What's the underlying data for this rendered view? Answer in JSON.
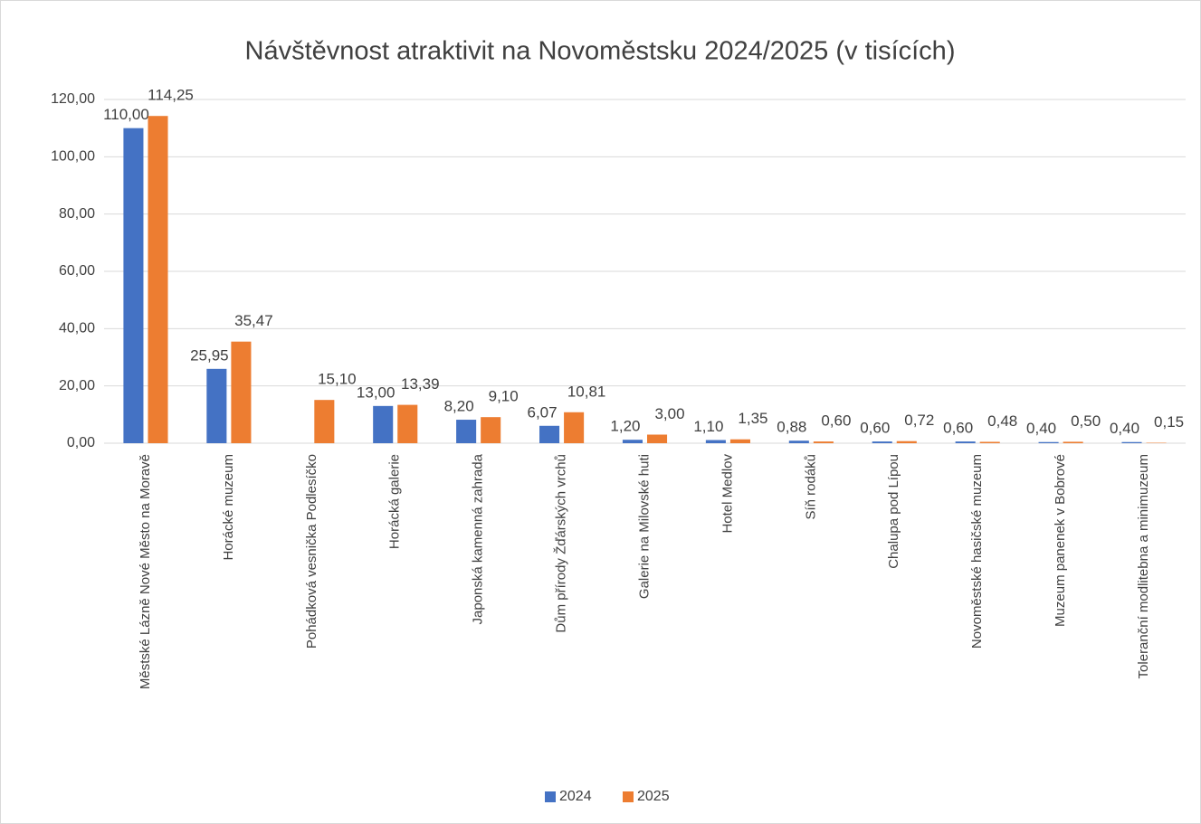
{
  "chart_data": {
    "type": "bar",
    "title": "Návštěvnost atraktivit na Novoměstsku 2024/2025 (v tisících)",
    "categories": [
      "Městské Lázně Nové Město na Moravě",
      "Horácké muzeum",
      "Pohádková vesnička Podlesíčko",
      "Horácká galerie",
      "Japonská kamenná zahrada",
      "Dům přírody Žďárských vrchů",
      "Galerie na Milovské huti",
      "Hotel Medlov",
      "Síň rodáků",
      "Chalupa pod Lípou",
      "Novoměstské hasičské muzeum",
      "Muzeum panenek v Bobrové",
      "Toleranční modlitebna a minimuzeum"
    ],
    "series": [
      {
        "name": "2024",
        "color": "#4472c4",
        "values": [
          110.0,
          25.95,
          null,
          13.0,
          8.2,
          6.07,
          1.2,
          1.1,
          0.88,
          0.6,
          0.6,
          0.4,
          0.4
        ],
        "value_labels": [
          "110,00",
          "25,95",
          null,
          "13,00",
          "8,20",
          "6,07",
          "1,20",
          "1,10",
          "0,88",
          "0,60",
          "0,60",
          "0,40",
          "0,40"
        ]
      },
      {
        "name": "2025",
        "color": "#ed7d31",
        "values": [
          114.25,
          35.47,
          15.1,
          13.39,
          9.1,
          10.81,
          3.0,
          1.35,
          0.6,
          0.72,
          0.48,
          0.5,
          0.15
        ],
        "value_labels": [
          "114,25",
          "35,47",
          "15,10",
          "13,39",
          "9,10",
          "10,81",
          "3,00",
          "1,35",
          "0,60",
          "0,72",
          "0,48",
          "0,50",
          "0,15"
        ]
      }
    ],
    "ylim": [
      0,
      120
    ],
    "yticks": [
      {
        "value": 0,
        "label": "0,00"
      },
      {
        "value": 20,
        "label": "20,00"
      },
      {
        "value": 40,
        "label": "40,00"
      },
      {
        "value": 60,
        "label": "60,00"
      },
      {
        "value": 80,
        "label": "80,00"
      },
      {
        "value": 100,
        "label": "100,00"
      },
      {
        "value": 120,
        "label": "120,00"
      }
    ],
    "grid": true,
    "legend": "bottom"
  }
}
